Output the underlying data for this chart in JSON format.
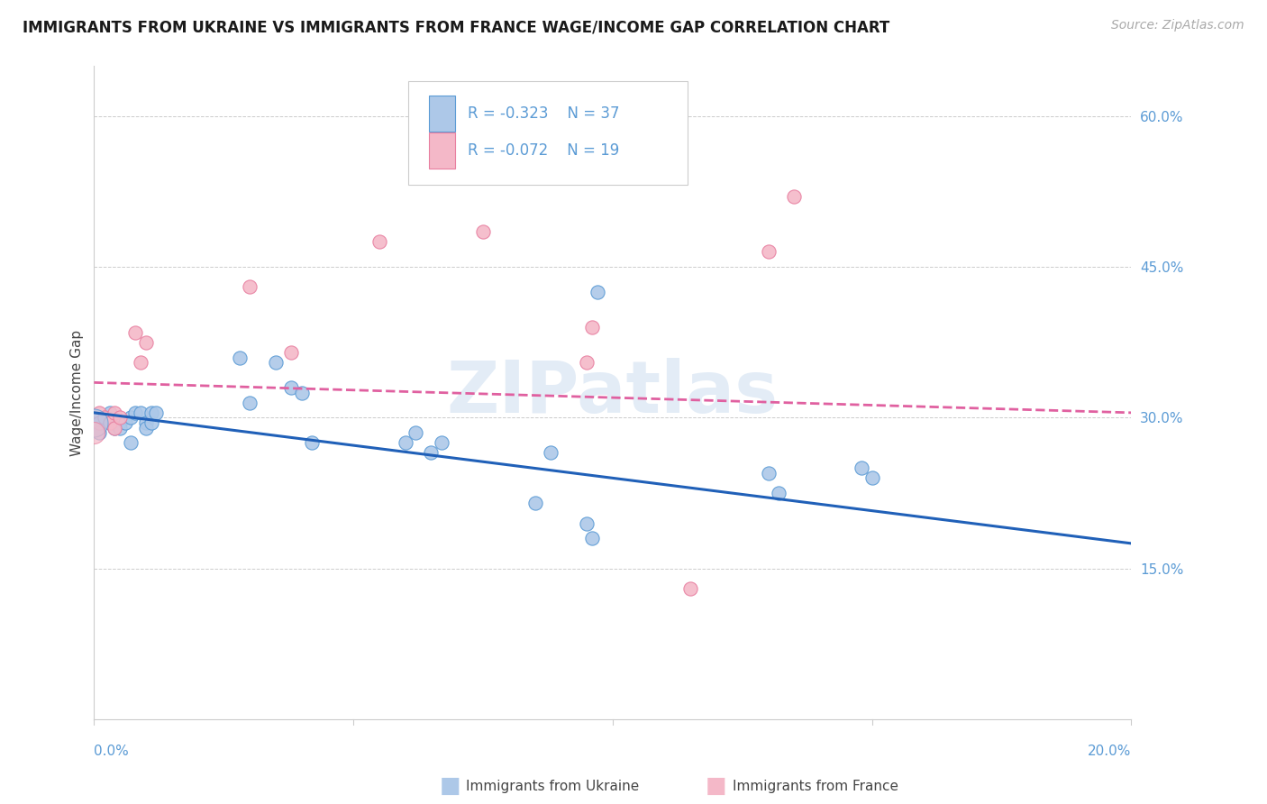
{
  "title": "IMMIGRANTS FROM UKRAINE VS IMMIGRANTS FROM FRANCE WAGE/INCOME GAP CORRELATION CHART",
  "source": "Source: ZipAtlas.com",
  "ylabel": "Wage/Income Gap",
  "ukraine_color": "#adc8e8",
  "ukraine_edge": "#5b9bd5",
  "france_color": "#f4b8c8",
  "france_edge": "#e87fa0",
  "ukraine_line_color": "#2060b8",
  "france_line_color": "#e060a0",
  "label_color": "#5b9bd5",
  "text_color": "#444444",
  "grid_color": "#cccccc",
  "legend_R_ukraine": "-0.323",
  "legend_N_ukraine": "37",
  "legend_R_france": "-0.072",
  "legend_N_france": "19",
  "xlim": [
    0.0,
    0.2
  ],
  "ylim": [
    0.0,
    0.65
  ],
  "right_yticks": [
    0.15,
    0.3,
    0.45,
    0.6
  ],
  "right_yticklabels": [
    "15.0%",
    "30.0%",
    "45.0%",
    "60.0%"
  ],
  "ukraine_x": [
    0.001,
    0.001,
    0.002,
    0.003,
    0.003,
    0.004,
    0.005,
    0.005,
    0.006,
    0.007,
    0.007,
    0.008,
    0.009,
    0.01,
    0.01,
    0.011,
    0.011,
    0.012,
    0.028,
    0.03,
    0.035,
    0.038,
    0.04,
    0.042,
    0.06,
    0.062,
    0.065,
    0.067,
    0.085,
    0.088,
    0.095,
    0.096,
    0.097,
    0.13,
    0.132,
    0.148,
    0.15
  ],
  "ukraine_y": [
    0.295,
    0.285,
    0.3,
    0.305,
    0.295,
    0.29,
    0.295,
    0.29,
    0.295,
    0.275,
    0.3,
    0.305,
    0.305,
    0.295,
    0.29,
    0.295,
    0.305,
    0.305,
    0.36,
    0.315,
    0.355,
    0.33,
    0.325,
    0.275,
    0.275,
    0.285,
    0.265,
    0.275,
    0.215,
    0.265,
    0.195,
    0.18,
    0.425,
    0.245,
    0.225,
    0.25,
    0.24
  ],
  "france_x": [
    0.001,
    0.001,
    0.002,
    0.003,
    0.004,
    0.004,
    0.005,
    0.008,
    0.009,
    0.01,
    0.03,
    0.038,
    0.055,
    0.075,
    0.095,
    0.096,
    0.115,
    0.13,
    0.135
  ],
  "france_y": [
    0.305,
    0.295,
    0.3,
    0.295,
    0.29,
    0.305,
    0.3,
    0.385,
    0.355,
    0.375,
    0.43,
    0.365,
    0.475,
    0.485,
    0.355,
    0.39,
    0.13,
    0.465,
    0.52
  ],
  "bottom_legend_ukraine": "Immigrants from Ukraine",
  "bottom_legend_france": "Immigrants from France"
}
